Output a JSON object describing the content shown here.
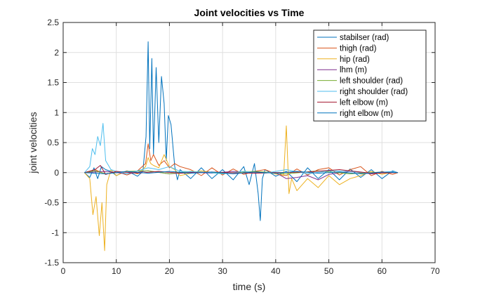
{
  "chart_data": {
    "type": "line",
    "title": "Joint velocities vs Time",
    "xlabel": "time (s)",
    "ylabel": "joint velocities",
    "xlim": [
      0,
      70
    ],
    "ylim": [
      -1.5,
      2.5
    ],
    "xticks": [
      0,
      10,
      20,
      30,
      40,
      50,
      60,
      70
    ],
    "yticks": [
      -1.5,
      -1,
      -0.5,
      0,
      0.5,
      1,
      1.5,
      2,
      2.5
    ],
    "xtick_labels": [
      "0",
      "10",
      "20",
      "30",
      "40",
      "50",
      "60",
      "70"
    ],
    "ytick_labels": [
      "-1.5",
      "-1",
      "-0.5",
      "0",
      "0.5",
      "1",
      "1.5",
      "2",
      "2.5"
    ],
    "grid": true,
    "legend_position": "top-right",
    "series": [
      {
        "name": "stabilser (rad)",
        "color": "#0072bd",
        "x": [
          4,
          5,
          5.8,
          6.5,
          7.2,
          8,
          9,
          10,
          12,
          14,
          15,
          15.6,
          16,
          16.3,
          16.7,
          17,
          17.5,
          18,
          18.5,
          19,
          19.4,
          19.8,
          20.3,
          21,
          21.5,
          22,
          24,
          26,
          28,
          30,
          32,
          34,
          35,
          36,
          36.7,
          37.1,
          37.5,
          38,
          40,
          42,
          44,
          46,
          48,
          50,
          52,
          54,
          56,
          58,
          60,
          62,
          63
        ],
        "y": [
          0,
          -0.08,
          0.08,
          -0.1,
          0.1,
          0.05,
          0.02,
          -0.05,
          0.03,
          -0.06,
          0.02,
          0.6,
          2.18,
          0.4,
          1.9,
          0.3,
          1.75,
          0.5,
          1.6,
          1.15,
          0.2,
          0.95,
          0.8,
          0.1,
          -0.12,
          0.05,
          -0.1,
          0.08,
          -0.1,
          0.05,
          -0.12,
          0.1,
          -0.2,
          0.15,
          -0.35,
          -0.8,
          -0.1,
          0.05,
          -0.06,
          0.02,
          -0.15,
          0.08,
          -0.1,
          0.05,
          -0.12,
          0.06,
          -0.08,
          0.05,
          -0.1,
          0.03,
          0
        ]
      },
      {
        "name": "thigh (rad)",
        "color": "#d95319",
        "x": [
          4,
          6,
          8,
          10,
          12,
          14,
          15.5,
          16,
          16.5,
          17,
          18,
          19,
          20,
          21,
          22,
          24,
          26,
          28,
          30,
          32,
          34,
          36,
          38,
          40,
          42,
          44,
          46,
          48,
          50,
          52,
          54,
          56,
          58,
          60,
          62,
          63
        ],
        "y": [
          0,
          0.05,
          -0.03,
          0.02,
          -0.04,
          0.03,
          0.15,
          0.48,
          0.2,
          0.3,
          0.12,
          0.2,
          0.08,
          0.15,
          0.1,
          0.05,
          -0.05,
          0.08,
          -0.04,
          0.06,
          -0.03,
          0.02,
          0.05,
          -0.02,
          -0.05,
          0.06,
          -0.04,
          0.05,
          0.08,
          -0.04,
          0.05,
          0.1,
          -0.05,
          0.02,
          -0.03,
          0
        ]
      },
      {
        "name": "hip (rad)",
        "color": "#edb120",
        "x": [
          4,
          5,
          5.6,
          6.2,
          6.8,
          7.3,
          7.8,
          8.2,
          9,
          10,
          12,
          14,
          15.5,
          16,
          16.5,
          17,
          18,
          19,
          20,
          21,
          22,
          26,
          30,
          34,
          38,
          40,
          41.5,
          42,
          42.5,
          43,
          44,
          46,
          48,
          50,
          52,
          54,
          56,
          58,
          60,
          62,
          63
        ],
        "y": [
          0,
          -0.1,
          -0.7,
          -0.4,
          -1.05,
          -0.5,
          -1.3,
          -0.2,
          0.05,
          -0.05,
          0.03,
          -0.02,
          0.1,
          0.25,
          0.15,
          0.12,
          0.08,
          0.3,
          0.1,
          0.05,
          -0.05,
          0.03,
          -0.02,
          0.02,
          0.01,
          -0.02,
          -0.05,
          0.78,
          -0.35,
          -0.1,
          -0.3,
          -0.1,
          -0.25,
          -0.05,
          -0.2,
          -0.1,
          -0.05,
          0.02,
          -0.03,
          0.01,
          0
        ]
      },
      {
        "name": "lhm (m)",
        "color": "#7e2f8e",
        "x": [
          4,
          8,
          12,
          16,
          20,
          24,
          28,
          32,
          36,
          40,
          42,
          44,
          46,
          48,
          50,
          54,
          58,
          62,
          63
        ],
        "y": [
          0,
          0.02,
          -0.02,
          0.03,
          -0.02,
          0.01,
          -0.01,
          0.02,
          -0.01,
          0,
          -0.1,
          -0.08,
          -0.05,
          -0.12,
          -0.03,
          0.02,
          -0.02,
          0.01,
          0
        ]
      },
      {
        "name": "left shoulder (rad)",
        "color": "#77ac30",
        "x": [
          4,
          6,
          8,
          12,
          16,
          20,
          24,
          30,
          36,
          42,
          48,
          54,
          60,
          63
        ],
        "y": [
          0,
          0.03,
          -0.02,
          0.02,
          0.03,
          -0.02,
          0.02,
          -0.01,
          0.02,
          -0.02,
          0.03,
          -0.02,
          0.01,
          0
        ]
      },
      {
        "name": "right shoulder (rad)",
        "color": "#4dbeee",
        "x": [
          4,
          5,
          5.5,
          6,
          6.5,
          7,
          7.5,
          8,
          9,
          10,
          12,
          14,
          16,
          18,
          20,
          22,
          26,
          30,
          34,
          38,
          42,
          46,
          50,
          54,
          58,
          62,
          63
        ],
        "y": [
          0,
          0.1,
          0.4,
          0.3,
          0.6,
          0.45,
          0.82,
          0.2,
          0.05,
          0.02,
          -0.02,
          0.03,
          0.08,
          0.05,
          0.1,
          0.02,
          0.01,
          -0.02,
          0.02,
          -0.01,
          0.05,
          -0.02,
          0.03,
          0.02,
          -0.01,
          0.02,
          0
        ]
      },
      {
        "name": "left elbow (m)",
        "color": "#a2142f",
        "x": [
          4,
          6,
          7,
          8,
          10,
          14,
          18,
          22,
          28,
          34,
          40,
          46,
          52,
          58,
          63
        ],
        "y": [
          0,
          0.05,
          0.12,
          -0.03,
          0.02,
          -0.01,
          0.02,
          -0.01,
          0.01,
          -0.01,
          0,
          0.01,
          0.05,
          -0.01,
          0
        ]
      },
      {
        "name": "right elbow (m)",
        "color": "#0072bd",
        "x": [
          4,
          8,
          12,
          16,
          20,
          24,
          28,
          32,
          36,
          40,
          44,
          48,
          52,
          56,
          60,
          63
        ],
        "y": [
          0,
          -0.02,
          0.02,
          -0.01,
          0.02,
          -0.01,
          0.01,
          -0.02,
          0.01,
          -0.01,
          0.02,
          -0.01,
          0.01,
          -0.02,
          0.01,
          0
        ]
      }
    ]
  }
}
